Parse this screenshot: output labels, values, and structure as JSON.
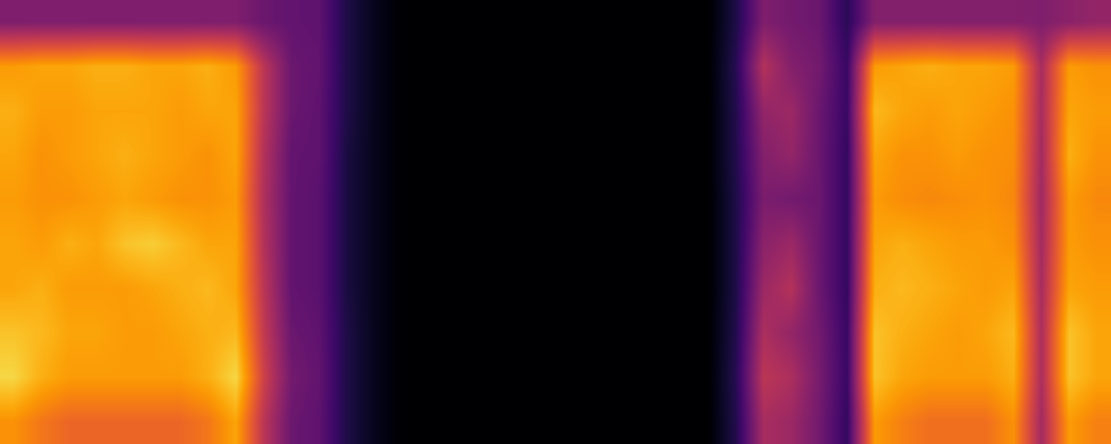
{
  "chart_data": {
    "type": "heatmap",
    "color": "inferno",
    "tick_labels": false,
    "value_range": [
      0,
      1
    ],
    "cells": [
      [
        0.35,
        0.35,
        0.35,
        0.35,
        0.35,
        0.35,
        0.35,
        0.35,
        0.35,
        0.3,
        0.28,
        0.27,
        0.12,
        0.05,
        0,
        0,
        0,
        0,
        0,
        0,
        0,
        0,
        0,
        0,
        0,
        0,
        0.12,
        0.35,
        0.32,
        0.3,
        0.15,
        0.36,
        0.36,
        0.36,
        0.36,
        0.36,
        0.36,
        0.35,
        0.38,
        0.4
      ],
      [
        0.78,
        0.8,
        0.8,
        0.82,
        0.82,
        0.8,
        0.8,
        0.82,
        0.78,
        0.5,
        0.3,
        0.28,
        0.12,
        0.05,
        0,
        0,
        0,
        0,
        0,
        0,
        0,
        0,
        0,
        0,
        0,
        0,
        0.14,
        0.48,
        0.36,
        0.32,
        0.18,
        0.78,
        0.8,
        0.82,
        0.8,
        0.8,
        0.78,
        0.45,
        0.78,
        0.76
      ],
      [
        0.82,
        0.78,
        0.78,
        0.8,
        0.8,
        0.8,
        0.78,
        0.8,
        0.8,
        0.5,
        0.3,
        0.27,
        0.12,
        0.05,
        0,
        0,
        0,
        0,
        0,
        0,
        0,
        0,
        0,
        0,
        0,
        0,
        0.13,
        0.4,
        0.42,
        0.3,
        0.18,
        0.84,
        0.8,
        0.78,
        0.8,
        0.78,
        0.76,
        0.45,
        0.8,
        0.78
      ],
      [
        0.8,
        0.76,
        0.78,
        0.8,
        0.82,
        0.8,
        0.78,
        0.76,
        0.8,
        0.48,
        0.28,
        0.27,
        0.11,
        0.05,
        0,
        0,
        0,
        0,
        0,
        0,
        0,
        0,
        0,
        0,
        0,
        0,
        0.13,
        0.36,
        0.4,
        0.3,
        0.17,
        0.8,
        0.76,
        0.76,
        0.78,
        0.76,
        0.75,
        0.44,
        0.82,
        0.76
      ],
      [
        0.78,
        0.76,
        0.76,
        0.78,
        0.8,
        0.78,
        0.76,
        0.76,
        0.78,
        0.47,
        0.28,
        0.26,
        0.11,
        0.05,
        0,
        0,
        0,
        0,
        0,
        0,
        0,
        0,
        0,
        0,
        0,
        0,
        0.12,
        0.34,
        0.32,
        0.3,
        0.17,
        0.78,
        0.75,
        0.74,
        0.75,
        0.76,
        0.74,
        0.43,
        0.78,
        0.74
      ],
      [
        0.8,
        0.78,
        0.82,
        0.8,
        0.86,
        0.88,
        0.84,
        0.8,
        0.8,
        0.48,
        0.28,
        0.26,
        0.11,
        0.05,
        0,
        0,
        0,
        0,
        0,
        0,
        0,
        0,
        0,
        0,
        0,
        0,
        0.12,
        0.38,
        0.42,
        0.3,
        0.17,
        0.8,
        0.82,
        0.8,
        0.78,
        0.78,
        0.76,
        0.44,
        0.78,
        0.76
      ],
      [
        0.8,
        0.82,
        0.78,
        0.78,
        0.78,
        0.8,
        0.82,
        0.84,
        0.8,
        0.5,
        0.28,
        0.26,
        0.11,
        0.05,
        0,
        0,
        0,
        0,
        0,
        0,
        0,
        0,
        0,
        0,
        0,
        0,
        0.12,
        0.42,
        0.48,
        0.3,
        0.17,
        0.82,
        0.84,
        0.82,
        0.8,
        0.78,
        0.8,
        0.45,
        0.8,
        0.78
      ],
      [
        0.86,
        0.84,
        0.8,
        0.8,
        0.78,
        0.78,
        0.8,
        0.82,
        0.84,
        0.52,
        0.3,
        0.27,
        0.12,
        0.05,
        0,
        0,
        0,
        0,
        0,
        0,
        0,
        0,
        0,
        0,
        0,
        0,
        0.13,
        0.46,
        0.4,
        0.32,
        0.18,
        0.86,
        0.82,
        0.8,
        0.78,
        0.8,
        0.84,
        0.46,
        0.86,
        0.8
      ],
      [
        0.9,
        0.82,
        0.78,
        0.78,
        0.78,
        0.78,
        0.78,
        0.82,
        0.9,
        0.55,
        0.32,
        0.28,
        0.12,
        0.05,
        0,
        0,
        0,
        0,
        0,
        0,
        0,
        0,
        0,
        0,
        0,
        0,
        0.14,
        0.5,
        0.46,
        0.33,
        0.18,
        0.86,
        0.8,
        0.78,
        0.78,
        0.78,
        0.82,
        0.46,
        0.86,
        0.8
      ],
      [
        0.76,
        0.7,
        0.66,
        0.66,
        0.66,
        0.66,
        0.66,
        0.7,
        0.8,
        0.5,
        0.3,
        0.27,
        0.12,
        0.05,
        0,
        0,
        0,
        0,
        0,
        0,
        0,
        0,
        0,
        0,
        0,
        0,
        0.13,
        0.45,
        0.42,
        0.32,
        0.17,
        0.78,
        0.72,
        0.68,
        0.68,
        0.68,
        0.76,
        0.44,
        0.78,
        0.72
      ]
    ]
  }
}
